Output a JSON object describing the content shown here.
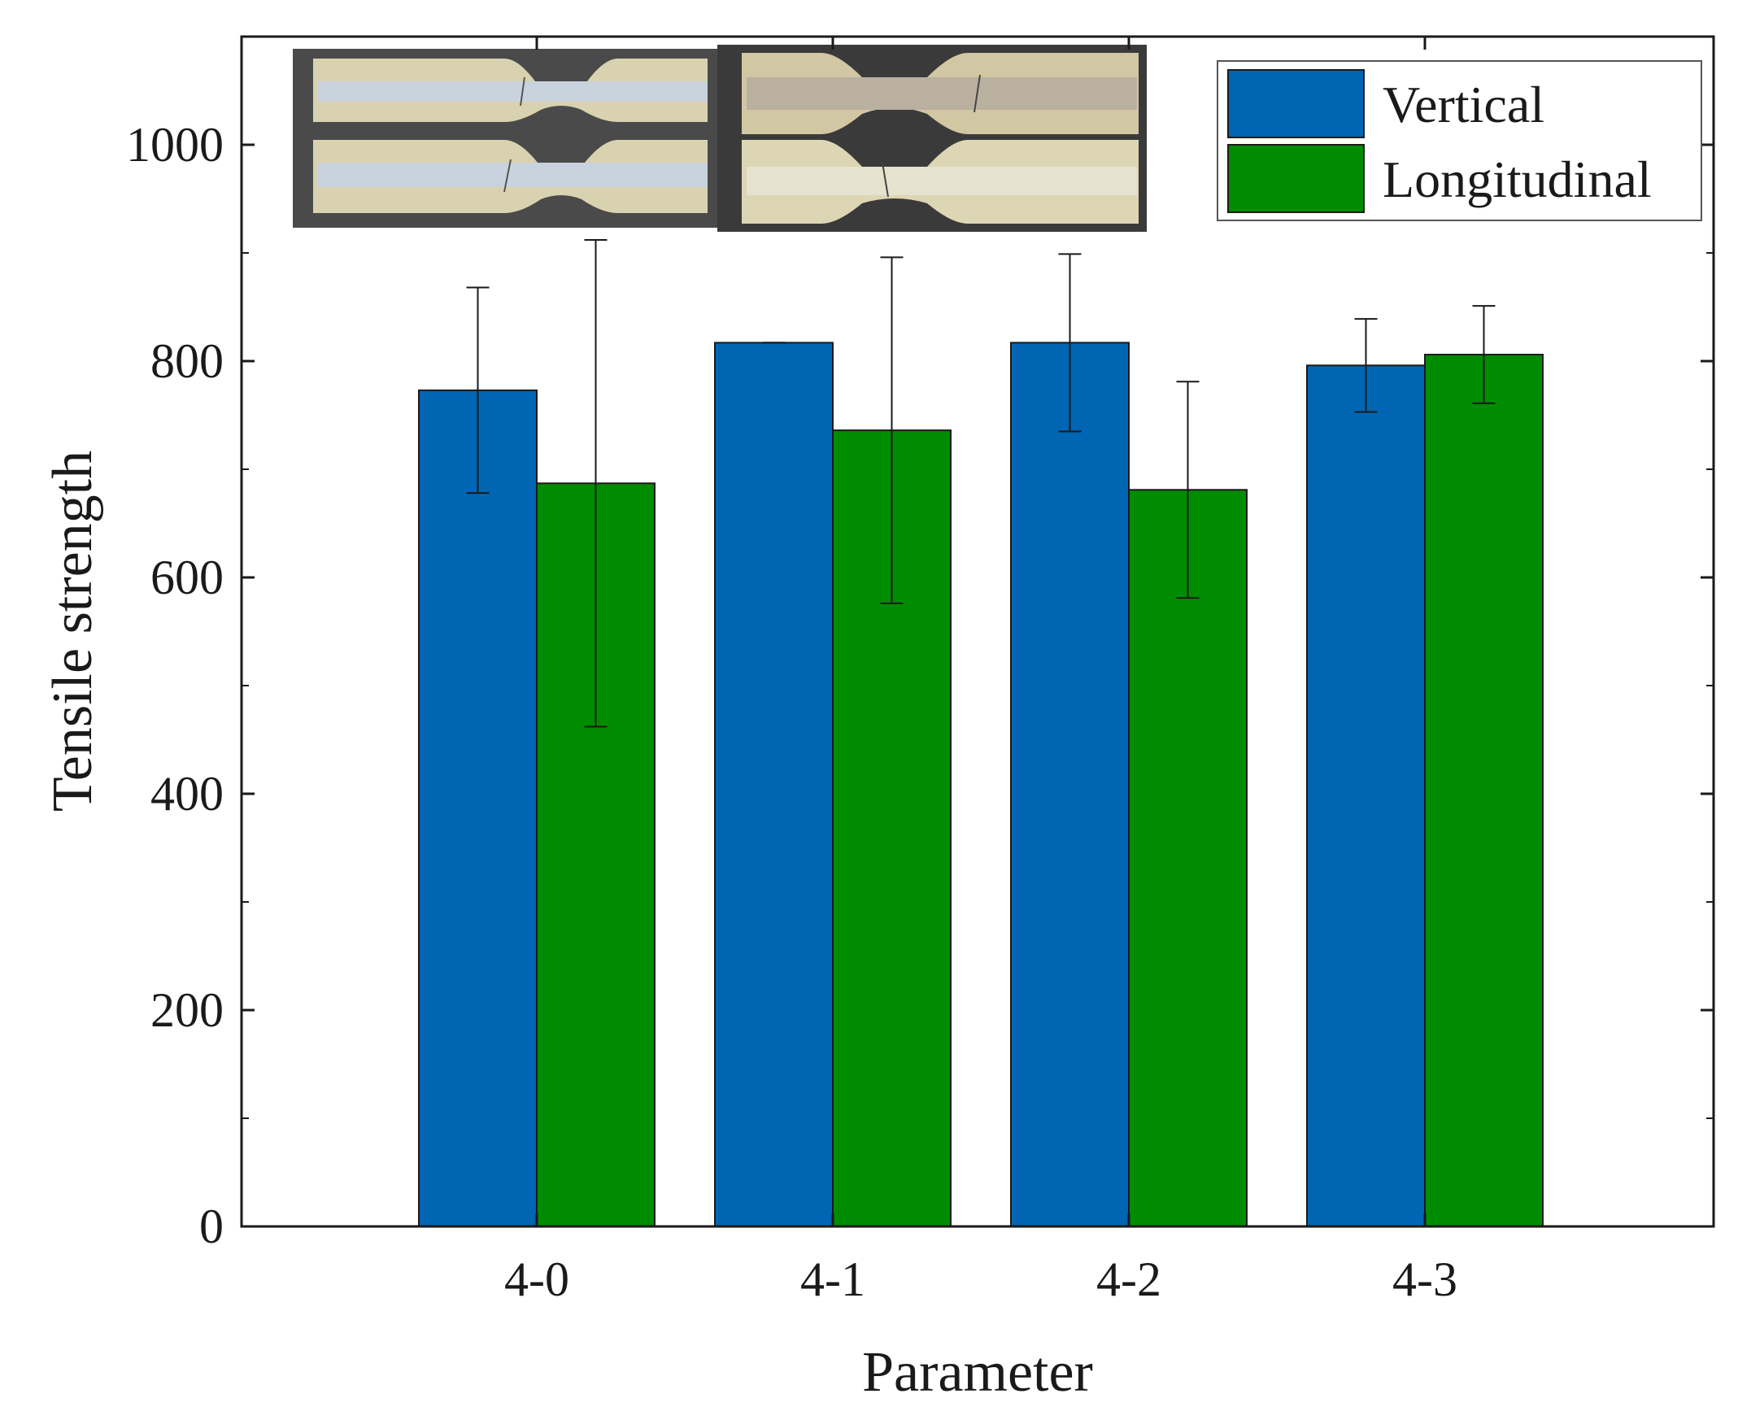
{
  "chart_data": {
    "type": "bar",
    "title": "",
    "xlabel": "Parameter",
    "ylabel": "Tensile strength",
    "categories": [
      "4-0",
      "4-1",
      "4-2",
      "4-3"
    ],
    "ylim": [
      0,
      1100
    ],
    "yticks": [
      0,
      200,
      400,
      600,
      800,
      1000
    ],
    "ytick_labels": [
      "0",
      "200",
      "400",
      "600",
      "800",
      "1000"
    ],
    "grid": false,
    "legend_position": "top-right",
    "series": [
      {
        "name": "Vertical",
        "color": "#0066b3",
        "values": [
          773,
          817,
          817,
          796
        ],
        "errors": [
          95,
          0,
          82,
          43
        ]
      },
      {
        "name": "Longitudinal",
        "color": "#008c00",
        "values": [
          687,
          736,
          681,
          806
        ],
        "errors": [
          225,
          160,
          100,
          45
        ]
      }
    ],
    "inset": "photo of fractured tensile test specimens"
  }
}
